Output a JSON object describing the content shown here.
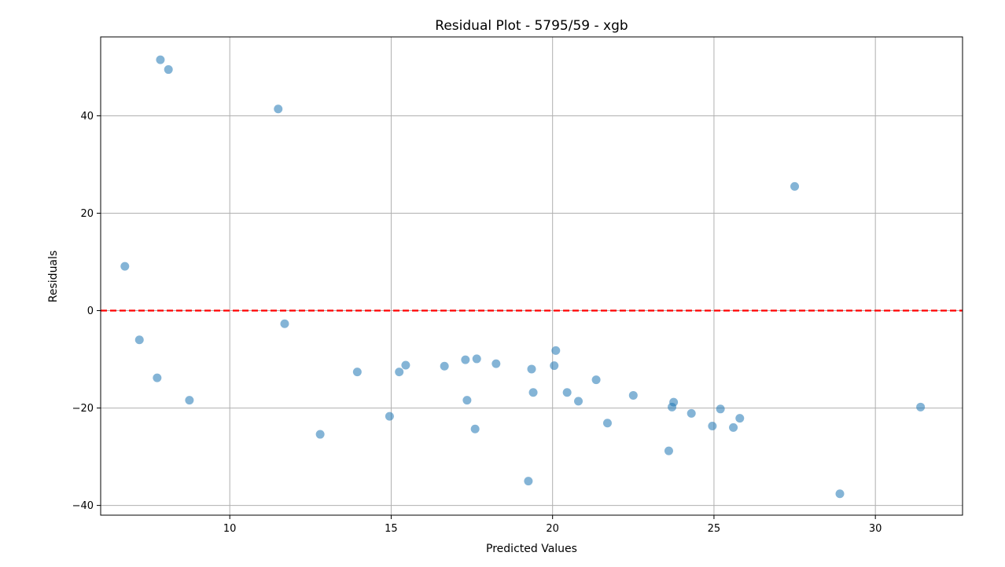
{
  "chart_data": {
    "type": "scatter",
    "title": "Residual Plot - 5795/59 - xgb",
    "xlabel": "Predicted Values",
    "ylabel": "Residuals",
    "xlim": [
      6.0,
      32.7
    ],
    "ylim": [
      -42.0,
      56.2
    ],
    "xticks": [
      10,
      15,
      20,
      25,
      30
    ],
    "yticks": [
      -40,
      -20,
      0,
      20,
      40
    ],
    "grid": true,
    "reference_line": {
      "y": 0,
      "style": "dashed",
      "color": "#ff0000"
    },
    "point_color": "#1f77b4",
    "point_opacity": 0.55,
    "points": [
      {
        "x": 6.75,
        "y": 9.1
      },
      {
        "x": 7.2,
        "y": -6.0
      },
      {
        "x": 7.75,
        "y": -13.8
      },
      {
        "x": 7.85,
        "y": 51.5
      },
      {
        "x": 8.1,
        "y": 49.5
      },
      {
        "x": 8.75,
        "y": -18.4
      },
      {
        "x": 11.5,
        "y": 41.4
      },
      {
        "x": 11.7,
        "y": -2.7
      },
      {
        "x": 12.8,
        "y": -25.4
      },
      {
        "x": 13.95,
        "y": -12.6
      },
      {
        "x": 14.95,
        "y": -21.7
      },
      {
        "x": 15.25,
        "y": -12.6
      },
      {
        "x": 15.45,
        "y": -11.2
      },
      {
        "x": 16.65,
        "y": -11.4
      },
      {
        "x": 17.3,
        "y": -10.1
      },
      {
        "x": 17.35,
        "y": -18.4
      },
      {
        "x": 17.6,
        "y": -24.3
      },
      {
        "x": 17.65,
        "y": -9.9
      },
      {
        "x": 18.25,
        "y": -10.9
      },
      {
        "x": 19.25,
        "y": -35.0
      },
      {
        "x": 19.35,
        "y": -12.0
      },
      {
        "x": 19.4,
        "y": -16.8
      },
      {
        "x": 20.05,
        "y": -11.3
      },
      {
        "x": 20.1,
        "y": -8.2
      },
      {
        "x": 20.45,
        "y": -16.8
      },
      {
        "x": 20.8,
        "y": -18.6
      },
      {
        "x": 21.35,
        "y": -14.2
      },
      {
        "x": 21.7,
        "y": -23.1
      },
      {
        "x": 22.5,
        "y": -17.4
      },
      {
        "x": 23.6,
        "y": -28.8
      },
      {
        "x": 23.7,
        "y": -19.8
      },
      {
        "x": 23.75,
        "y": -18.8
      },
      {
        "x": 24.3,
        "y": -21.1
      },
      {
        "x": 24.95,
        "y": -23.7
      },
      {
        "x": 25.2,
        "y": -20.2
      },
      {
        "x": 25.6,
        "y": -24.0
      },
      {
        "x": 25.8,
        "y": -22.1
      },
      {
        "x": 27.5,
        "y": 25.5
      },
      {
        "x": 28.9,
        "y": -37.6
      },
      {
        "x": 31.4,
        "y": -19.8
      }
    ]
  }
}
